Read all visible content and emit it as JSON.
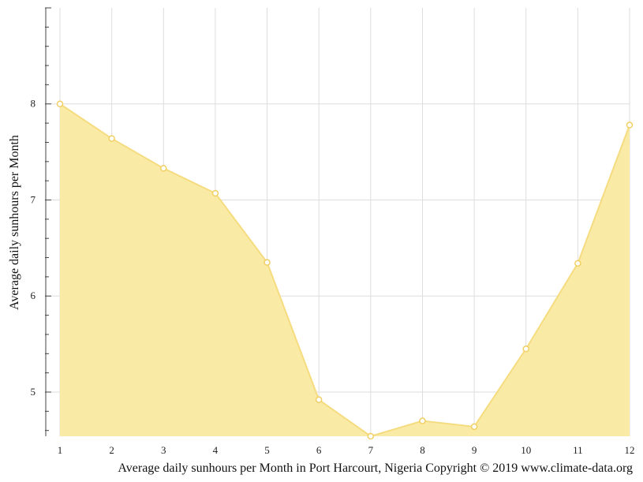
{
  "chart_data": {
    "type": "area",
    "title": "",
    "xlabel": "",
    "ylabel": "Average daily sunhours per Month",
    "caption": "Average daily sunhours per Month in Port Harcourt, Nigeria Copyright © 2019 www.climate-data.org",
    "x": [
      1,
      2,
      3,
      4,
      5,
      6,
      7,
      8,
      9,
      10,
      11,
      12
    ],
    "x_tick_labels": [
      "1",
      "2",
      "3",
      "4",
      "5",
      "6",
      "7",
      "8",
      "9",
      "10",
      "11",
      "12"
    ],
    "y_tick_labels": [
      "5",
      "6",
      "7",
      "8"
    ],
    "y_ticks": [
      5,
      6,
      7,
      8
    ],
    "series": [
      {
        "values": [
          8.0,
          7.64,
          7.33,
          7.07,
          6.35,
          4.92,
          4.54,
          4.7,
          4.64,
          5.45,
          6.34,
          7.78
        ]
      }
    ],
    "ylim": [
      4.54,
      9.0
    ],
    "xlim": [
      1,
      12
    ],
    "grid": true,
    "colors": {
      "fill": "#f9eaa6",
      "line": "#f5dc80",
      "marker_fill": "#ffffff",
      "marker_stroke": "#f0cf63",
      "grid": "#dddddd",
      "axis": "#444444"
    }
  }
}
